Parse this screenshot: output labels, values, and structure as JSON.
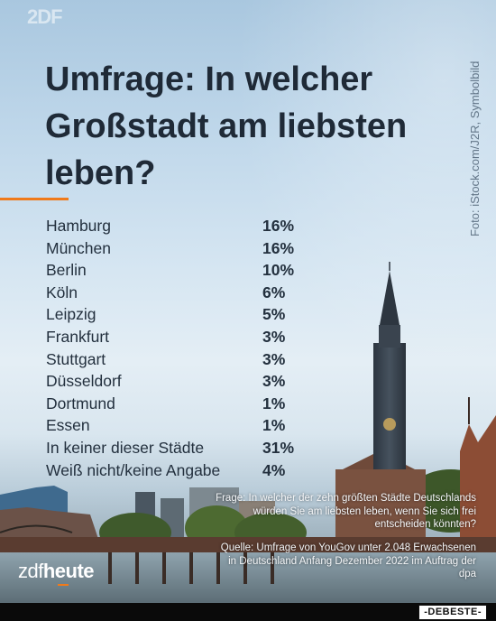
{
  "header": {
    "title": "Umfrage: In welcher Großstadt am liebsten leben?",
    "photo_credit": "Foto: iStock.com/J2R, Symbolbild"
  },
  "chart_data": {
    "type": "table",
    "title": "Umfrage: In welcher Großstadt am liebsten leben?",
    "categories": [
      "Hamburg",
      "München",
      "Berlin",
      "Köln",
      "Leipzig",
      "Frankfurt",
      "Stuttgart",
      "Düsseldorf",
      "Dortmund",
      "Essen",
      "In keiner dieser Städte",
      "Weiß nicht/keine Angabe"
    ],
    "values": [
      16,
      16,
      10,
      6,
      5,
      3,
      3,
      3,
      1,
      1,
      31,
      4
    ],
    "labels": [
      "16%",
      "16%",
      "10%",
      "6%",
      "5%",
      "3%",
      "3%",
      "3%",
      "1%",
      "1%",
      "31%",
      "4%"
    ],
    "unit": "%"
  },
  "footer": {
    "question": "Frage: In welcher der zehn größten Städte Deutschlands würden Sie am liebsten leben, wenn Sie sich frei entscheiden könnten?",
    "source": "Quelle: Umfrage von YouGov unter 2.048 Erwachsenen in Deutschland Anfang Dezember 2022 im Auftrag der dpa",
    "brand_zdf": "zdf",
    "brand_heute": "heute",
    "watermark": "2DF",
    "site_badge": "-DEBESTE-"
  },
  "colors": {
    "accent": "#f07a1a",
    "text": "#23303e",
    "title": "#1f2a37"
  }
}
